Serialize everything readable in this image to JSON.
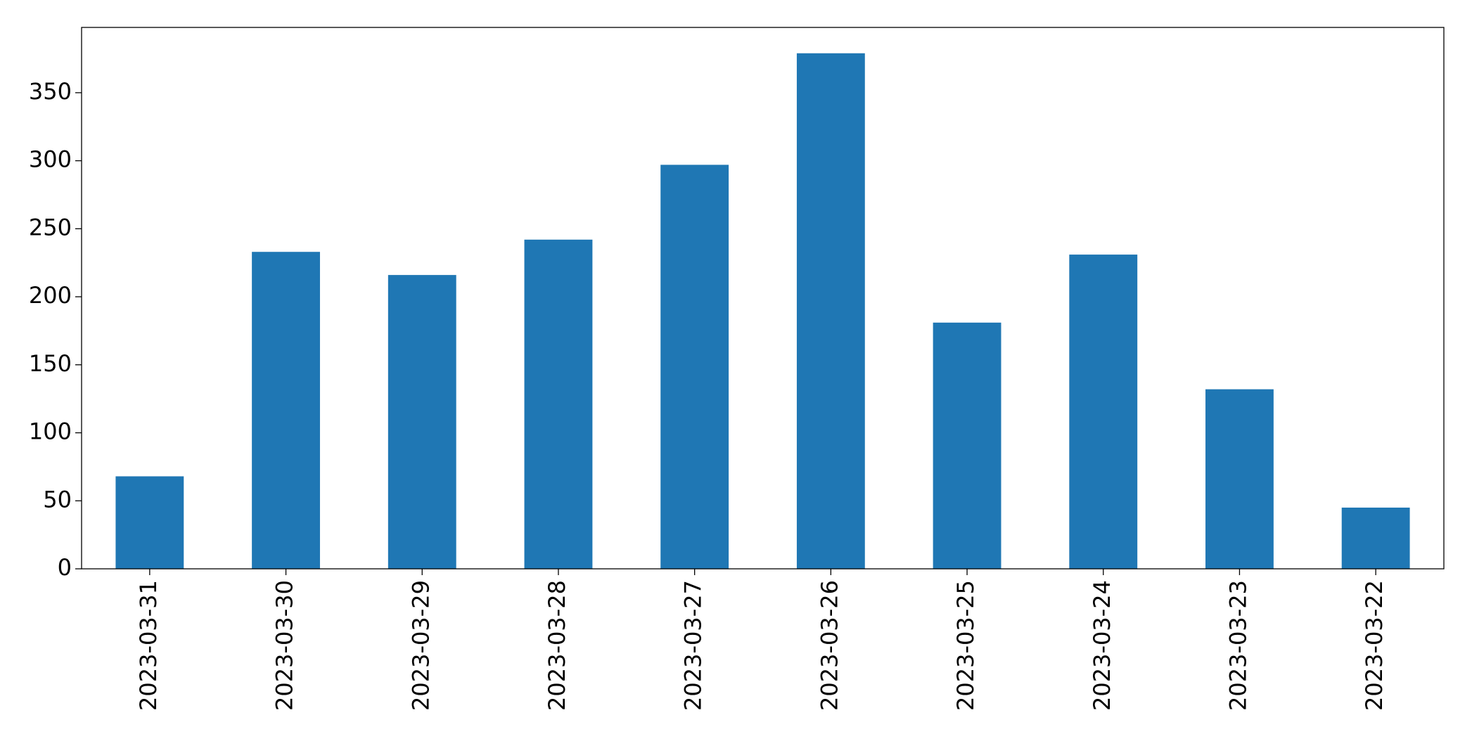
{
  "chart_data": {
    "type": "bar",
    "categories": [
      "2023-03-31",
      "2023-03-30",
      "2023-03-29",
      "2023-03-28",
      "2023-03-27",
      "2023-03-26",
      "2023-03-25",
      "2023-03-24",
      "2023-03-23",
      "2023-03-22"
    ],
    "values": [
      68,
      233,
      216,
      242,
      297,
      379,
      181,
      231,
      132,
      45
    ],
    "color": "#1f77b4",
    "ylim": [
      0,
      398
    ],
    "yticks": [
      0,
      50,
      100,
      150,
      200,
      250,
      300,
      350
    ],
    "grid": false
  }
}
